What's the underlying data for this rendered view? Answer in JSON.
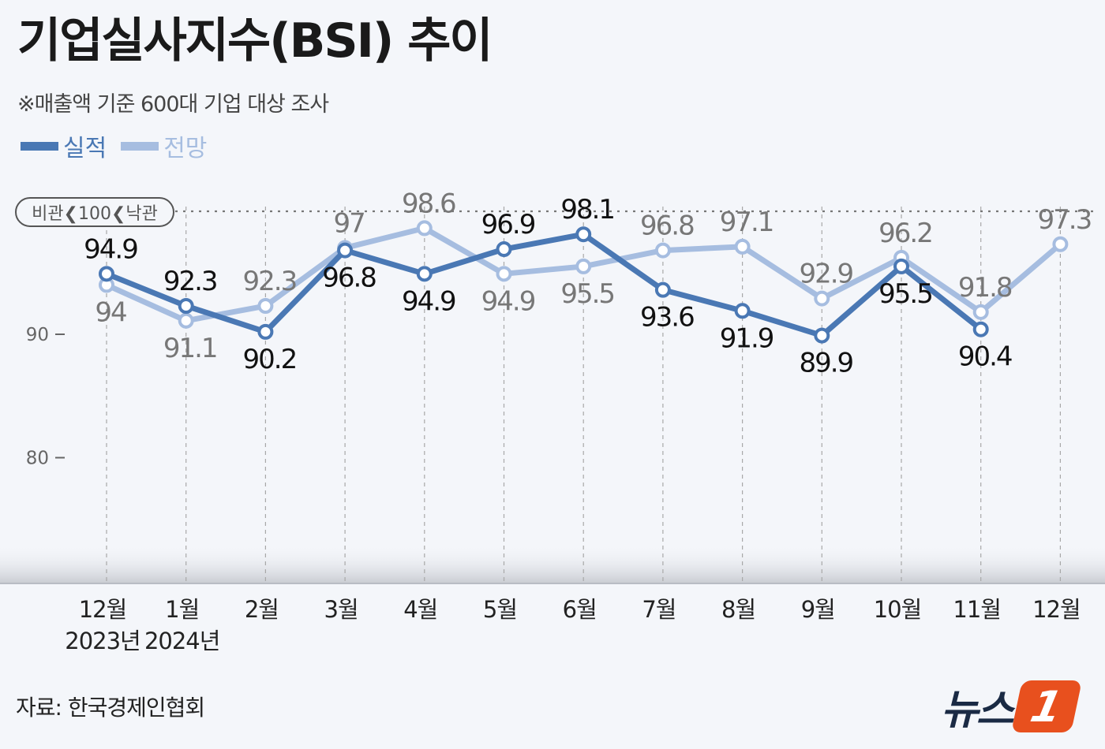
{
  "title": "기업실사지수(BSI) 추이",
  "subtitle": "※매출액 기준 600대 기업 대상 조사",
  "source": "자료: 한국경제인협회",
  "brand": {
    "text": "뉴스",
    "badge": "1"
  },
  "colors": {
    "actual": "#4a78b4",
    "forecast": "#a6bde0",
    "grid": "#9a9a9a",
    "brand_accent": "#e8501e"
  },
  "chart_data": {
    "type": "line",
    "title": "기업실사지수(BSI) 추이",
    "categories": [
      "12월",
      "1월",
      "2월",
      "3월",
      "4월",
      "5월",
      "6월",
      "7월",
      "8월",
      "9월",
      "10월",
      "11월",
      "12월"
    ],
    "year_labels": [
      {
        "index": 0,
        "label": "2023년"
      },
      {
        "index": 1,
        "label": "2024년"
      }
    ],
    "series": [
      {
        "name": "실적",
        "color": "#4a78b4",
        "values": [
          94.9,
          92.3,
          90.2,
          96.8,
          94.9,
          96.9,
          98.1,
          93.6,
          91.9,
          89.9,
          95.5,
          90.4,
          null
        ]
      },
      {
        "name": "전망",
        "color": "#a6bde0",
        "values": [
          94,
          91.1,
          92.3,
          97,
          98.6,
          94.9,
          95.5,
          96.8,
          97.1,
          92.9,
          96.2,
          91.8,
          97.3
        ]
      }
    ],
    "y_ticks": [
      80,
      90
    ],
    "ylim": [
      70,
      100
    ],
    "reference_line": {
      "value": 100,
      "label": "비관❮100❮낙관"
    },
    "grid": true,
    "legend": "top-left"
  }
}
